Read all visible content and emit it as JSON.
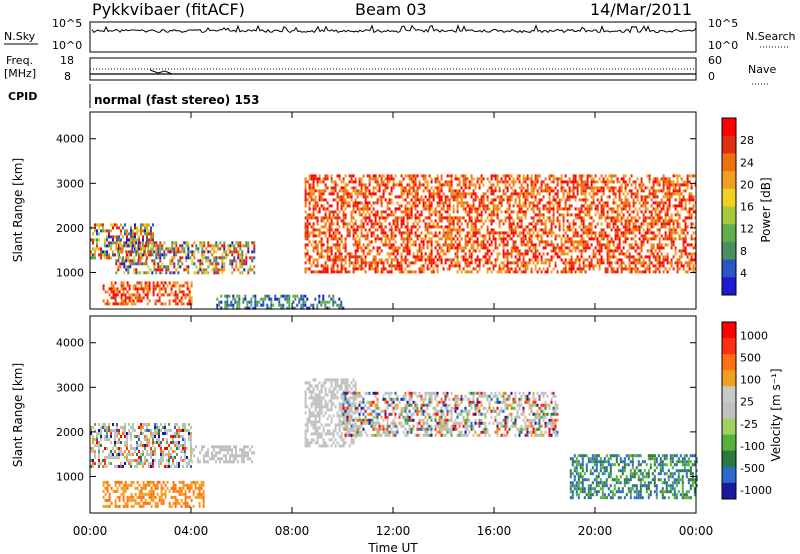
{
  "header": {
    "station": "Pykkvibaer (fitACF)",
    "beam": "Beam 03",
    "date": "14/Mar/2011"
  },
  "top_panels": {
    "nsky_label": "N.Sky",
    "nsky_ticks": [
      "10^5",
      "10^0"
    ],
    "nsearch_label": "N.Search",
    "nsearch_ticks": [
      "10^5",
      "10^0"
    ],
    "freq_label": "Freq.",
    "freq_unit": "[MHz]",
    "freq_ticks": [
      "18",
      "8"
    ],
    "nave_label": "Nave",
    "nave_ticks": [
      "60",
      "0"
    ],
    "cpid_label": "CPID",
    "cpid_text": "normal (fast stereo) 153"
  },
  "colors": {
    "power": [
      "#1a1ad0",
      "#2b55c4",
      "#4a8f5c",
      "#5fb04a",
      "#a6c93a",
      "#f0d020",
      "#f0a020",
      "#f07010",
      "#e03010",
      "#ff0000"
    ],
    "velocity": [
      "#1a1aa0",
      "#2a6acc",
      "#2a7a3a",
      "#55b040",
      "#a0d060",
      "#c0c0c0",
      "#c8c8c8",
      "#f0a020",
      "#ff7010",
      "#ff3010",
      "#ff0000"
    ],
    "ground_scatter": "#c0c0c0"
  },
  "chart_data": [
    {
      "type": "heatmap",
      "title": "",
      "xlabel": "Time UT",
      "ylabel": "Slant Range [km]",
      "x_ticks": [
        "00:00",
        "04:00",
        "08:00",
        "12:00",
        "16:00",
        "20:00",
        "00:00"
      ],
      "y_ticks": [
        "1000",
        "2000",
        "3000",
        "4000"
      ],
      "xlim": [
        0,
        24
      ],
      "ylim": [
        180,
        4600
      ],
      "colorbar_label": "Power [dB]",
      "colorbar_ticks": [
        "4",
        "8",
        "12",
        "16",
        "20",
        "24",
        "28"
      ],
      "regions": [
        {
          "x": [
            0.0,
            2.5
          ],
          "y": [
            1300,
            2100
          ],
          "level": "mixed"
        },
        {
          "x": [
            0.5,
            4.0
          ],
          "y": [
            300,
            800
          ],
          "level": "high"
        },
        {
          "x": [
            1.0,
            6.5
          ],
          "y": [
            1000,
            1700
          ],
          "level": "mixed-high"
        },
        {
          "x": [
            5.0,
            10.0
          ],
          "y": [
            200,
            500
          ],
          "level": "low"
        },
        {
          "x": [
            8.5,
            24.0
          ],
          "y": [
            1000,
            3200
          ],
          "level": "high"
        }
      ]
    },
    {
      "type": "heatmap",
      "title": "",
      "xlabel": "Time UT",
      "ylabel": "Slant Range [km]",
      "x_ticks": [
        "00:00",
        "04:00",
        "08:00",
        "12:00",
        "16:00",
        "20:00",
        "00:00"
      ],
      "y_ticks": [
        "1000",
        "2000",
        "3000",
        "4000"
      ],
      "xlim": [
        0,
        24
      ],
      "ylim": [
        180,
        4600
      ],
      "colorbar_label": "Velocity [m s⁻¹]",
      "colorbar_ticks": [
        "1000",
        "500",
        "100",
        "25",
        "-25",
        "-100",
        "-500",
        "-1000"
      ],
      "regions": [
        {
          "x": [
            0.0,
            4.0
          ],
          "y": [
            1200,
            2200
          ],
          "level": "mixed"
        },
        {
          "x": [
            0.5,
            4.5
          ],
          "y": [
            300,
            900
          ],
          "level": "away"
        },
        {
          "x": [
            4.0,
            6.5
          ],
          "y": [
            1300,
            1700
          ],
          "level": "ground-scatter"
        },
        {
          "x": [
            8.5,
            10.5
          ],
          "y": [
            1700,
            3200
          ],
          "level": "ground-scatter"
        },
        {
          "x": [
            10.0,
            18.5
          ],
          "y": [
            1900,
            2900
          ],
          "level": "mixed"
        },
        {
          "x": [
            19.0,
            24.0
          ],
          "y": [
            500,
            1500
          ],
          "level": "toward"
        }
      ]
    }
  ]
}
